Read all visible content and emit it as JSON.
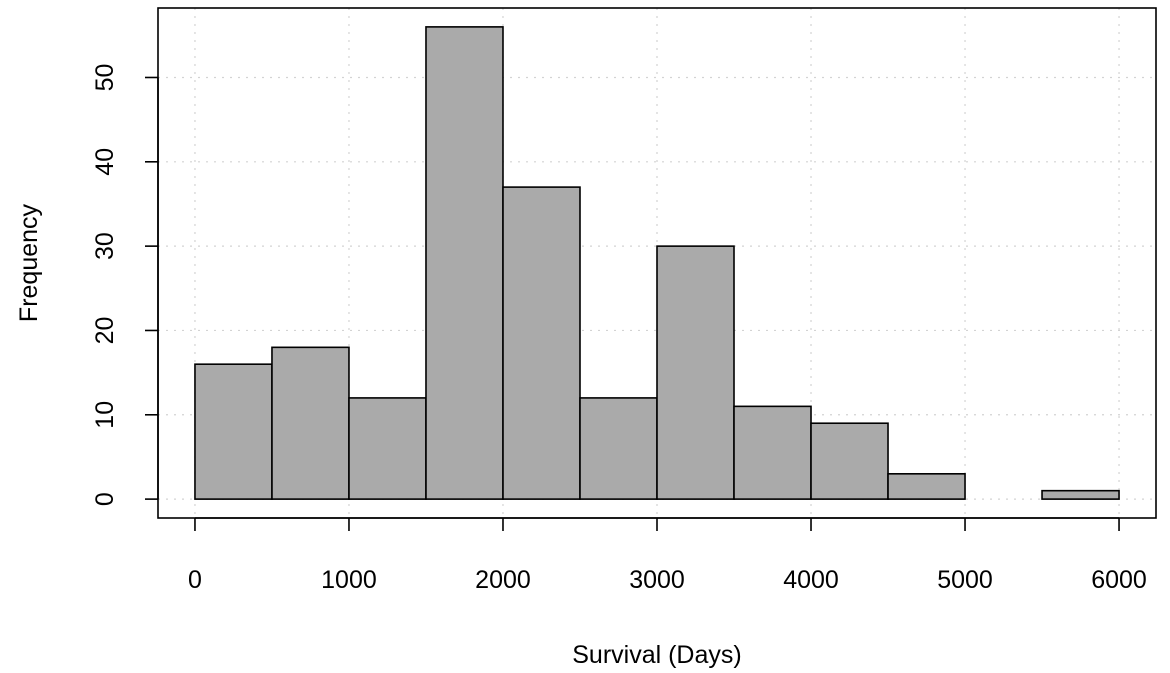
{
  "chart_data": {
    "type": "bar",
    "subtype": "histogram",
    "title": "",
    "xlabel": "Survival (Days)",
    "ylabel": "Frequency",
    "bins": [
      {
        "start": 0,
        "end": 500,
        "count": 16
      },
      {
        "start": 500,
        "end": 1000,
        "count": 18
      },
      {
        "start": 1000,
        "end": 1500,
        "count": 12
      },
      {
        "start": 1500,
        "end": 2000,
        "count": 56
      },
      {
        "start": 2000,
        "end": 2500,
        "count": 37
      },
      {
        "start": 2500,
        "end": 3000,
        "count": 12
      },
      {
        "start": 3000,
        "end": 3500,
        "count": 30
      },
      {
        "start": 3500,
        "end": 4000,
        "count": 11
      },
      {
        "start": 4000,
        "end": 4500,
        "count": 9
      },
      {
        "start": 4500,
        "end": 5000,
        "count": 3
      },
      {
        "start": 5000,
        "end": 5500,
        "count": 0
      },
      {
        "start": 5500,
        "end": 6000,
        "count": 1
      }
    ],
    "xticks": [
      0,
      1000,
      2000,
      3000,
      4000,
      5000,
      6000
    ],
    "yticks": [
      0,
      10,
      20,
      30,
      40,
      50
    ],
    "xlim": [
      -240,
      6240
    ],
    "ylim": [
      -2.24,
      58.24
    ],
    "grid": true,
    "colors": {
      "bar_fill": "#aaaaaa",
      "bar_stroke": "#000000",
      "grid": "#d3d3d3"
    }
  }
}
